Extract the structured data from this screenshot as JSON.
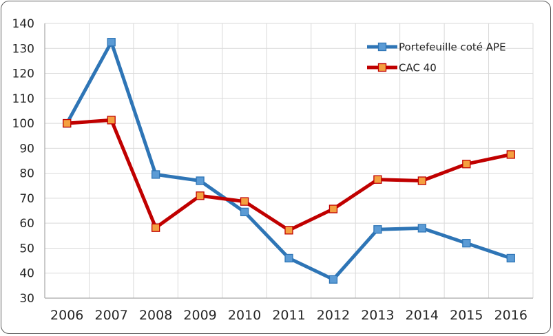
{
  "chart_data": {
    "type": "line",
    "title": "",
    "xlabel": "",
    "ylabel": "",
    "categories": [
      "2006",
      "2007",
      "2008",
      "2009",
      "2010",
      "2011",
      "2012",
      "2013",
      "2014",
      "2015",
      "2016"
    ],
    "ylim": [
      30,
      140
    ],
    "yticks": [
      30,
      40,
      50,
      60,
      70,
      80,
      90,
      100,
      110,
      120,
      130,
      140
    ],
    "grid": true,
    "legend_position": "top-right",
    "series": [
      {
        "name": "Portefeuille coté APE",
        "color": "#2e75b6",
        "marker_color": "#5b9bd5",
        "values": [
          100,
          132.5,
          79.5,
          77,
          64.5,
          46,
          37.5,
          57.5,
          58,
          52,
          46
        ]
      },
      {
        "name": "CAC 40",
        "color": "#c00000",
        "marker_color": "#f4a040",
        "values": [
          100,
          101.3,
          58.2,
          71,
          68.7,
          57.2,
          65.7,
          77.5,
          77,
          83.7,
          87.5
        ]
      }
    ]
  }
}
